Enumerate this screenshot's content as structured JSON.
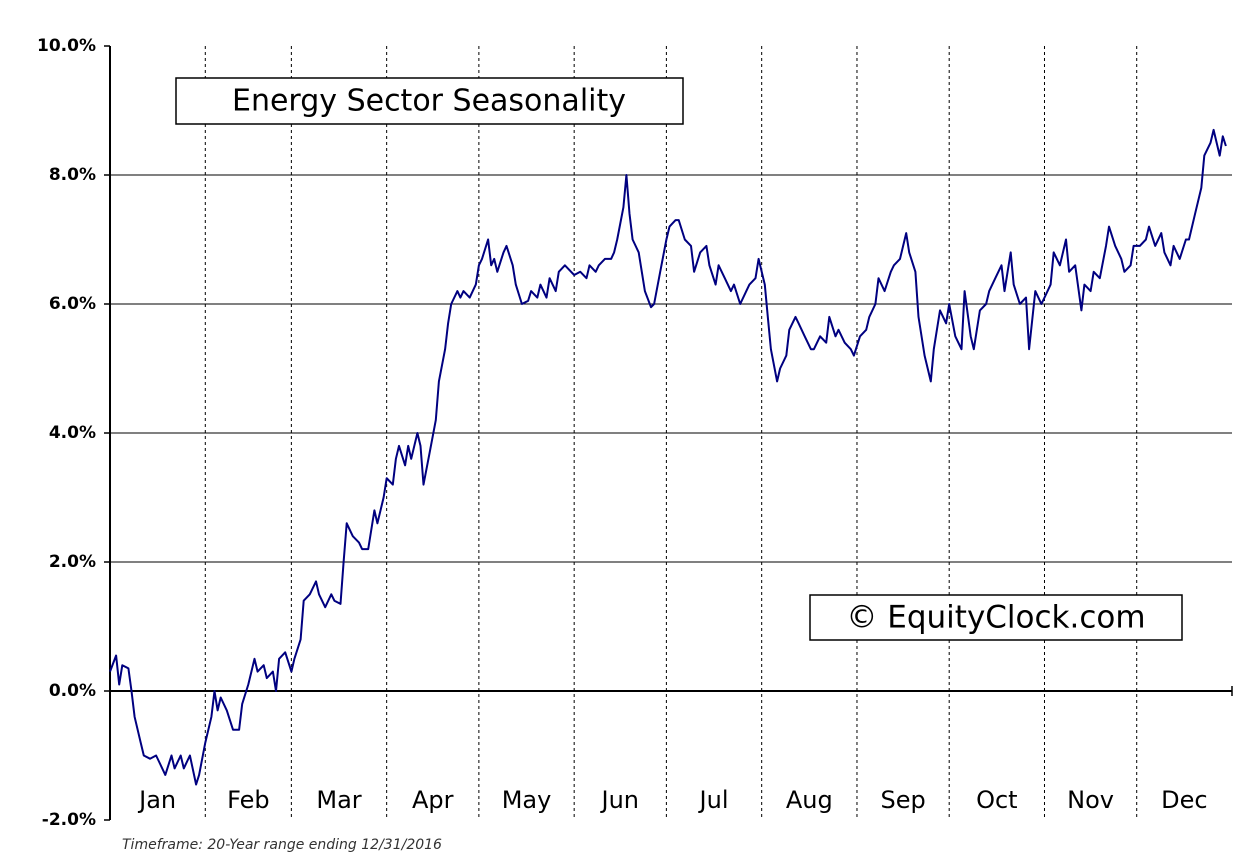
{
  "chart_data": {
    "type": "line",
    "title": "Energy Sector Seasonality",
    "watermark": "© EquityClock.com",
    "footnote": "Timeframe: 20-Year range ending 12/31/2016",
    "color": "#000080",
    "xlim": [
      0,
      365
    ],
    "xticks": [
      {
        "value": 0,
        "label": "Jan"
      },
      {
        "value": 31,
        "label": "Feb"
      },
      {
        "value": 59,
        "label": "Mar"
      },
      {
        "value": 90,
        "label": "Apr"
      },
      {
        "value": 120,
        "label": "May"
      },
      {
        "value": 151,
        "label": "Jun"
      },
      {
        "value": 181,
        "label": "Jul"
      },
      {
        "value": 212,
        "label": "Aug"
      },
      {
        "value": 243,
        "label": "Sep"
      },
      {
        "value": 273,
        "label": "Oct"
      },
      {
        "value": 304,
        "label": "Nov"
      },
      {
        "value": 334,
        "label": "Dec"
      }
    ],
    "ylim": [
      -2,
      10
    ],
    "yticks": [
      {
        "value": -2,
        "label": "-2.0%"
      },
      {
        "value": 0,
        "label": "0.0%"
      },
      {
        "value": 2,
        "label": "2.0%"
      },
      {
        "value": 4,
        "label": "4.0%"
      },
      {
        "value": 6,
        "label": "6.0%"
      },
      {
        "value": 8,
        "label": "8.0%"
      },
      {
        "value": 10,
        "label": "10.0%"
      }
    ],
    "grid": true,
    "x": [
      0,
      2,
      3,
      4,
      6,
      7,
      8,
      10,
      11,
      13,
      15,
      16,
      18,
      20,
      21,
      23,
      24,
      26,
      28,
      29,
      31,
      33,
      34,
      35,
      36,
      38,
      40,
      42,
      43,
      45,
      47,
      48,
      50,
      51,
      53,
      54,
      55,
      57,
      59,
      60,
      62,
      63,
      65,
      67,
      68,
      70,
      72,
      73,
      75,
      76,
      77,
      79,
      81,
      82,
      84,
      86,
      87,
      89,
      90,
      92,
      93,
      94,
      96,
      97,
      98,
      100,
      101,
      102,
      104,
      106,
      107,
      109,
      110,
      111,
      113,
      114,
      115,
      117,
      119,
      120,
      121,
      123,
      124,
      125,
      126,
      128,
      129,
      131,
      132,
      134,
      136,
      137,
      139,
      140,
      142,
      143,
      145,
      146,
      148,
      150,
      151,
      153,
      155,
      156,
      158,
      159,
      161,
      163,
      164,
      165,
      167,
      168,
      169,
      170,
      172,
      173,
      174,
      176,
      177,
      179,
      181,
      182,
      184,
      185,
      187,
      189,
      190,
      192,
      194,
      195,
      197,
      198,
      200,
      202,
      203,
      205,
      207,
      208,
      210,
      211,
      213,
      214,
      215,
      217,
      218,
      220,
      221,
      223,
      224,
      226,
      228,
      229,
      231,
      233,
      234,
      236,
      237,
      239,
      241,
      242,
      244,
      246,
      247,
      249,
      250,
      252,
      254,
      255,
      257,
      259,
      260,
      262,
      263,
      265,
      267,
      268,
      270,
      272,
      273,
      275,
      277,
      278,
      280,
      281,
      283,
      285,
      286,
      288,
      290,
      291,
      293,
      294,
      296,
      298,
      299,
      301,
      303,
      304,
      306,
      307,
      309,
      311,
      312,
      314,
      316,
      317,
      319,
      320,
      322,
      324,
      325,
      327,
      329,
      330,
      332,
      333,
      335,
      337,
      338,
      340,
      342,
      343,
      345,
      346,
      348,
      350,
      351,
      353,
      355,
      356,
      358,
      359,
      361,
      362,
      363
    ],
    "values": [
      0.3,
      0.55,
      0.1,
      0.4,
      0.35,
      0.0,
      -0.4,
      -0.8,
      -1.0,
      -1.05,
      -1.0,
      -1.1,
      -1.3,
      -1.0,
      -1.2,
      -1.0,
      -1.2,
      -1.0,
      -1.45,
      -1.3,
      -0.8,
      -0.4,
      0.0,
      -0.3,
      -0.1,
      -0.3,
      -0.6,
      -0.6,
      -0.2,
      0.1,
      0.5,
      0.3,
      0.4,
      0.2,
      0.3,
      0.0,
      0.5,
      0.6,
      0.3,
      0.5,
      0.8,
      1.4,
      1.5,
      1.7,
      1.5,
      1.3,
      1.5,
      1.4,
      1.35,
      2.0,
      2.6,
      2.4,
      2.3,
      2.2,
      2.2,
      2.8,
      2.6,
      3.0,
      3.3,
      3.2,
      3.6,
      3.8,
      3.5,
      3.8,
      3.6,
      4.0,
      3.8,
      3.2,
      3.7,
      4.2,
      4.8,
      5.3,
      5.7,
      6.0,
      6.2,
      6.1,
      6.2,
      6.1,
      6.3,
      6.6,
      6.7,
      7.0,
      6.6,
      6.7,
      6.5,
      6.8,
      6.9,
      6.6,
      6.3,
      6.0,
      6.05,
      6.2,
      6.1,
      6.3,
      6.1,
      6.4,
      6.2,
      6.5,
      6.6,
      6.5,
      6.45,
      6.5,
      6.4,
      6.6,
      6.5,
      6.6,
      6.7,
      6.7,
      6.8,
      7.0,
      7.5,
      8.0,
      7.4,
      7.0,
      6.8,
      6.5,
      6.2,
      5.95,
      6.0,
      6.5,
      7.0,
      7.2,
      7.3,
      7.3,
      7.0,
      6.9,
      6.5,
      6.8,
      6.9,
      6.6,
      6.3,
      6.6,
      6.4,
      6.2,
      6.3,
      6.0,
      6.2,
      6.3,
      6.4,
      6.7,
      6.3,
      5.8,
      5.3,
      4.8,
      5.0,
      5.2,
      5.6,
      5.8,
      5.7,
      5.5,
      5.3,
      5.3,
      5.5,
      5.4,
      5.8,
      5.5,
      5.6,
      5.4,
      5.3,
      5.2,
      5.5,
      5.6,
      5.8,
      6.0,
      6.4,
      6.2,
      6.5,
      6.6,
      6.7,
      7.1,
      6.8,
      6.5,
      5.8,
      5.2,
      4.8,
      5.3,
      5.9,
      5.7,
      6.0,
      5.5,
      5.3,
      6.2,
      5.5,
      5.3,
      5.9,
      6.0,
      6.2,
      6.4,
      6.6,
      6.2,
      6.8,
      6.3,
      6.0,
      6.1,
      5.3,
      6.2,
      6.0,
      6.1,
      6.3,
      6.8,
      6.6,
      7.0,
      6.5,
      6.6,
      5.9,
      6.3,
      6.2,
      6.5,
      6.4,
      6.9,
      7.2,
      6.9,
      6.7,
      6.5,
      6.6,
      6.9,
      6.9,
      7.0,
      7.2,
      6.9,
      7.1,
      6.8,
      6.6,
      6.9,
      6.7,
      7.0,
      7.0,
      7.4,
      7.8,
      8.3,
      8.5,
      8.7,
      8.3,
      8.6,
      8.45
    ]
  }
}
